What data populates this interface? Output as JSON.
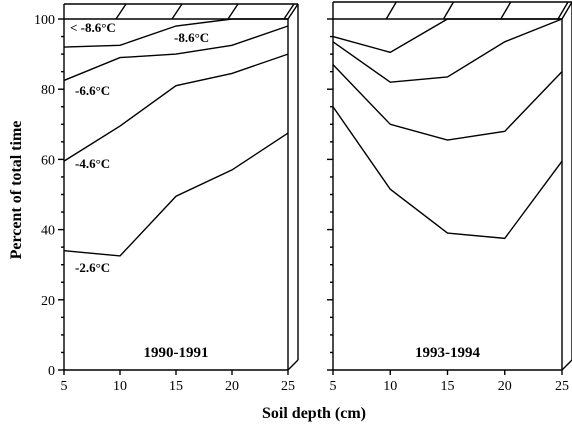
{
  "chart_data": {
    "type": "line",
    "xlabel": "Soil depth (cm)",
    "ylabel": "Percent of total time",
    "ylim": [
      0,
      100
    ],
    "yticks": [
      0,
      20,
      40,
      60,
      80,
      100
    ],
    "grid": false,
    "panels": [
      {
        "title": "1990-1991",
        "x": [
          5,
          10,
          15,
          20,
          25
        ],
        "xticks": [
          "5",
          "10",
          "15",
          "20",
          "25"
        ],
        "series": [
          {
            "name": "< -8.6°C",
            "values": [
              92,
              92.5,
              98,
              100,
              100
            ]
          },
          {
            "name": "-8.6°C",
            "values": [
              82.5,
              89,
              90,
              92.5,
              98
            ]
          },
          {
            "name": "-6.6°C",
            "values": [
              59.5,
              69.5,
              81,
              84.5,
              90
            ]
          },
          {
            "name": "-4.6°C",
            "values": [
              34,
              32.5,
              49.5,
              57,
              67.5
            ]
          },
          {
            "name": "-2.6°C",
            "values": []
          }
        ]
      },
      {
        "title": "1993-1994",
        "x": [
          5,
          10,
          15,
          20,
          25
        ],
        "xticks": [
          "5",
          "10",
          "15",
          "20",
          "25"
        ],
        "series": [
          {
            "name": "",
            "values": [
              95,
              90.5,
              100,
              100,
              100
            ]
          },
          {
            "name": "",
            "values": [
              93.5,
              82,
              83.5,
              93.5,
              100
            ]
          },
          {
            "name": "",
            "values": [
              87,
              70,
              65.5,
              68,
              85
            ]
          },
          {
            "name": "",
            "values": [
              75,
              51.5,
              39,
              37.5,
              59.5
            ]
          }
        ]
      }
    ]
  }
}
